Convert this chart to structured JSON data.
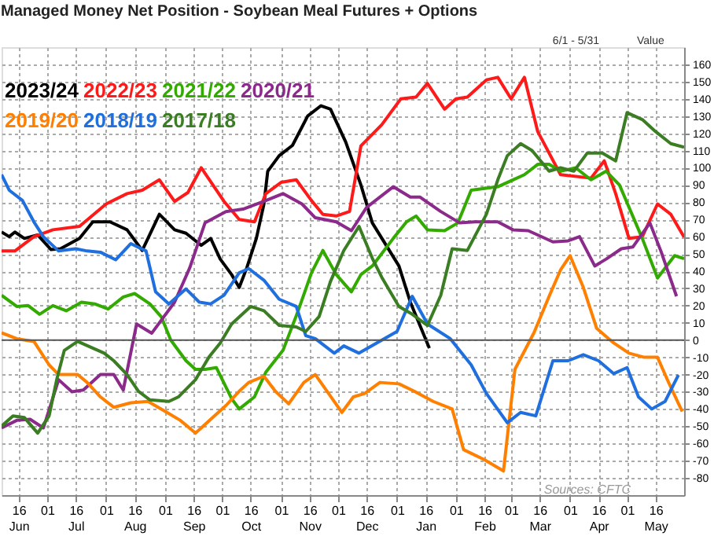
{
  "chart_data": {
    "type": "line",
    "title": "Managed Money Net Position - Soybean Meal Futures + Options",
    "ylabel": "Value",
    "annotations": [
      "6/1 - 5/31",
      "Sources: CFTC"
    ],
    "xlim": [
      "2023-06-07",
      "2024-05-31"
    ],
    "xticks": [
      {
        "value": "2023-06-16",
        "label": "16\nJun"
      },
      {
        "value": "2023-07-01",
        "label": "01"
      },
      {
        "value": "2023-07-16",
        "label": "16\nJul"
      },
      {
        "value": "2023-08-01",
        "label": "01"
      },
      {
        "value": "2023-08-16",
        "label": "16\nAug"
      },
      {
        "value": "2023-09-01",
        "label": "01"
      },
      {
        "value": "2023-09-16",
        "label": "16\nSep"
      },
      {
        "value": "2023-10-01",
        "label": "01"
      },
      {
        "value": "2023-10-16",
        "label": "16\nOct"
      },
      {
        "value": "2023-11-01",
        "label": "01"
      },
      {
        "value": "2023-11-16",
        "label": "16\nNov"
      },
      {
        "value": "2023-12-01",
        "label": "01"
      },
      {
        "value": "2023-12-16",
        "label": "16\nDec"
      },
      {
        "value": "2024-01-01",
        "label": "01"
      },
      {
        "value": "2024-01-16",
        "label": "16\nJan"
      },
      {
        "value": "2024-02-01",
        "label": "01"
      },
      {
        "value": "2024-02-16",
        "label": "16\nFeb"
      },
      {
        "value": "2024-03-01",
        "label": "01"
      },
      {
        "value": "2024-03-16",
        "label": "16\nMar"
      },
      {
        "value": "2024-04-01",
        "label": "01"
      },
      {
        "value": "2024-04-16",
        "label": "16\nApr"
      },
      {
        "value": "2024-05-01",
        "label": "01"
      },
      {
        "value": "2024-05-16",
        "label": "16\nMay"
      }
    ],
    "ylim": [
      -90,
      170
    ],
    "yticks": [
      -80,
      -70,
      -60,
      -50,
      -40,
      -30,
      -20,
      -10,
      0,
      10,
      20,
      30,
      40,
      50,
      60,
      70,
      80,
      90,
      100,
      110,
      120,
      130,
      140,
      150,
      160
    ],
    "grid": true,
    "legend": "top left",
    "line_style": "solid",
    "marker": "none",
    "ref_lines": [
      {
        "axis": "y",
        "value": 0,
        "color": "#555555"
      }
    ],
    "series": [
      {
        "name": "2023/24",
        "color": "#000000",
        "x": [
          "2023-06-07",
          "2023-06-11",
          "2023-06-14",
          "2023-06-19",
          "2023-06-26",
          "2023-07-03",
          "2023-07-08",
          "2023-07-18",
          "2023-07-25",
          "2023-08-03",
          "2023-08-12",
          "2023-08-20",
          "2023-08-29",
          "2023-09-06",
          "2023-09-12",
          "2023-09-20",
          "2023-09-25",
          "2023-09-30",
          "2023-10-06",
          "2023-10-10",
          "2023-10-14",
          "2023-10-19",
          "2023-10-23",
          "2023-10-25",
          "2023-10-31",
          "2023-11-07",
          "2023-11-15",
          "2023-11-22",
          "2023-11-27",
          "2023-12-05",
          "2023-12-13",
          "2023-12-19",
          "2024-01-02",
          "2024-01-08",
          "2024-01-18"
        ],
        "values": [
          62.7,
          60,
          62.7,
          59,
          61,
          52.5,
          53,
          59,
          68.6,
          68.6,
          64,
          52,
          73,
          64,
          62,
          55,
          59,
          47,
          38,
          30.5,
          42,
          59,
          79,
          98,
          107,
          113,
          130,
          136,
          134,
          115,
          90,
          68,
          43,
          22,
          -4.7
        ]
      },
      {
        "name": "2022/23",
        "color": "#ff1a1a",
        "x": [
          "2023-06-07",
          "2023-06-14",
          "2023-06-24",
          "2023-07-04",
          "2023-07-18",
          "2023-08-01",
          "2023-08-12",
          "2023-08-20",
          "2023-08-29",
          "2023-09-06",
          "2023-09-13",
          "2023-09-20",
          "2023-10-02",
          "2023-10-10",
          "2023-10-18",
          "2023-10-24",
          "2023-11-01",
          "2023-11-09",
          "2023-11-17",
          "2023-11-23",
          "2023-11-30",
          "2023-12-07",
          "2023-12-13",
          "2023-12-24",
          "2024-01-03",
          "2024-01-11",
          "2024-01-17",
          "2024-01-26",
          "2024-02-01",
          "2024-02-07",
          "2024-02-17",
          "2024-02-23",
          "2024-03-01",
          "2024-03-08",
          "2024-03-15",
          "2024-03-27",
          "2024-04-12",
          "2024-04-19",
          "2024-04-25",
          "2024-05-02",
          "2024-05-09",
          "2024-05-17",
          "2024-05-24",
          "2024-05-31"
        ],
        "values": [
          51.7,
          51.7,
          60,
          64,
          66,
          79,
          85,
          87,
          93,
          80.5,
          85.6,
          100,
          80.5,
          70,
          68.6,
          85,
          91.5,
          93,
          81,
          73,
          72,
          74.6,
          112.7,
          125,
          140,
          141,
          149,
          134,
          140,
          141,
          151,
          152.5,
          140,
          152.5,
          121,
          96,
          94,
          104,
          85,
          59,
          60,
          79,
          73,
          59.7
        ]
      },
      {
        "name": "2021/22",
        "color": "#33aa00",
        "x": [
          "2023-06-07",
          "2023-06-15",
          "2023-06-21",
          "2023-06-27",
          "2023-07-04",
          "2023-07-11",
          "2023-07-19",
          "2023-07-26",
          "2023-08-02",
          "2023-08-10",
          "2023-08-16",
          "2023-08-24",
          "2023-08-30",
          "2023-09-04",
          "2023-09-12",
          "2023-09-17",
          "2023-09-22",
          "2023-09-28",
          "2023-10-06",
          "2023-10-10",
          "2023-10-18",
          "2023-10-24",
          "2023-11-02",
          "2023-11-10",
          "2023-11-17",
          "2023-11-23",
          "2023-11-30",
          "2023-12-08",
          "2023-12-13",
          "2023-12-19",
          "2023-12-30",
          "2024-01-06",
          "2024-01-11",
          "2024-01-17",
          "2024-01-26",
          "2024-02-02",
          "2024-02-09",
          "2024-02-23",
          "2024-03-02",
          "2024-03-08",
          "2024-03-15",
          "2024-03-21",
          "2024-03-27",
          "2024-04-04",
          "2024-04-12",
          "2024-04-20",
          "2024-04-27",
          "2024-05-09",
          "2024-05-17",
          "2024-05-26",
          "2024-05-31"
        ],
        "values": [
          26,
          19.5,
          20,
          15,
          20,
          17,
          22,
          21,
          18,
          25,
          27,
          21,
          13.5,
          0,
          -12,
          -17,
          -17,
          -16,
          -34,
          -40,
          -33,
          -18.6,
          -6,
          17,
          39,
          52,
          38,
          28,
          38,
          43,
          59,
          68.6,
          72,
          64,
          63.5,
          68,
          87,
          89,
          93,
          96,
          102,
          102,
          98,
          100,
          93,
          98,
          90,
          59,
          36,
          49,
          47.3
        ]
      },
      {
        "name": "2020/21",
        "color": "#8b2a8b",
        "x": [
          "2023-06-07",
          "2023-06-15",
          "2023-06-22",
          "2023-06-29",
          "2023-07-07",
          "2023-07-14",
          "2023-07-20",
          "2023-07-29",
          "2023-08-05",
          "2023-08-10",
          "2023-08-17",
          "2023-08-25",
          "2023-09-06",
          "2023-09-14",
          "2023-09-22",
          "2023-10-03",
          "2023-10-12",
          "2023-10-23",
          "2023-11-02",
          "2023-11-12",
          "2023-11-19",
          "2023-11-30",
          "2023-12-08",
          "2023-12-16",
          "2023-12-30",
          "2024-01-08",
          "2024-01-13",
          "2024-01-24",
          "2024-02-03",
          "2024-02-11",
          "2024-02-23",
          "2024-03-02",
          "2024-03-10",
          "2024-03-23",
          "2024-03-31",
          "2024-04-06",
          "2024-04-14",
          "2024-04-20",
          "2024-04-28",
          "2024-05-04",
          "2024-05-13",
          "2024-05-19",
          "2024-05-27"
        ],
        "values": [
          -51,
          -46.6,
          -46,
          -51,
          -23,
          -30,
          -29,
          -20,
          -20,
          -29,
          9.3,
          4,
          22,
          42,
          68,
          74.6,
          76,
          80.5,
          85,
          79,
          71,
          68.6,
          63.5,
          77,
          89,
          83,
          83,
          74.6,
          68,
          68.6,
          68.6,
          64,
          63.5,
          57,
          57.6,
          60,
          43,
          47,
          53,
          54,
          68,
          51,
          25.4
        ]
      },
      {
        "name": "2019/20",
        "color": "#ff8000",
        "x": [
          "2023-06-07",
          "2023-06-15",
          "2023-06-24",
          "2023-07-02",
          "2023-07-07",
          "2023-07-17",
          "2023-07-22",
          "2023-07-29",
          "2023-08-05",
          "2023-08-14",
          "2023-08-23",
          "2023-09-02",
          "2023-09-09",
          "2023-09-17",
          "2023-09-25",
          "2023-10-03",
          "2023-10-10",
          "2023-10-15",
          "2023-10-23",
          "2023-10-29",
          "2023-11-05",
          "2023-11-13",
          "2023-11-19",
          "2023-11-26",
          "2023-12-03",
          "2023-12-09",
          "2023-12-15",
          "2023-12-23",
          "2024-01-02",
          "2024-01-10",
          "2024-01-20",
          "2024-01-30",
          "2024-02-05",
          "2024-02-16",
          "2024-02-26",
          "2024-03-03",
          "2024-03-13",
          "2024-03-21",
          "2024-03-27",
          "2024-04-01",
          "2024-04-08",
          "2024-04-15",
          "2024-04-24",
          "2024-05-02",
          "2024-05-10",
          "2024-05-17",
          "2024-05-23",
          "2024-05-30"
        ],
        "values": [
          4.2,
          0.8,
          -0.8,
          -14.4,
          -20,
          -20,
          -24.6,
          -33,
          -39,
          -36.4,
          -35.6,
          -42,
          -46.6,
          -54,
          -46,
          -38,
          -29.7,
          -24.6,
          -21,
          -29.7,
          -37,
          -24.6,
          -20,
          -31,
          -42,
          -33,
          -31,
          -24.6,
          -25.4,
          -29.7,
          -35.6,
          -40,
          -63.6,
          -69.5,
          -76,
          -17,
          4.2,
          25.4,
          40.7,
          49,
          30.5,
          6.8,
          -1.7,
          -7.6,
          -10,
          -10,
          -25,
          -41.5
        ]
      },
      {
        "name": "2018/19",
        "color": "#1f6fdf",
        "x": [
          "2023-06-07",
          "2023-06-11",
          "2023-06-18",
          "2023-06-24",
          "2023-06-29",
          "2023-07-07",
          "2023-07-16",
          "2023-07-22",
          "2023-07-29",
          "2023-08-06",
          "2023-08-14",
          "2023-08-22",
          "2023-08-27",
          "2023-09-03",
          "2023-09-12",
          "2023-09-19",
          "2023-09-25",
          "2023-10-02",
          "2023-10-10",
          "2023-10-15",
          "2023-10-23",
          "2023-10-31",
          "2023-11-09",
          "2023-11-14",
          "2023-11-19",
          "2023-11-29",
          "2023-12-04",
          "2023-12-12",
          "2023-12-24",
          "2024-01-01",
          "2024-01-09",
          "2024-01-17",
          "2024-01-29",
          "2024-02-09",
          "2024-02-17",
          "2024-02-28",
          "2024-03-06",
          "2024-03-14",
          "2024-03-23",
          "2024-03-31",
          "2024-04-08",
          "2024-04-16",
          "2024-04-24",
          "2024-05-01",
          "2024-05-07",
          "2024-05-14",
          "2024-05-21",
          "2024-05-28"
        ],
        "values": [
          96,
          87,
          81,
          68.6,
          60,
          51.7,
          53,
          51.7,
          51,
          46.6,
          56,
          51.7,
          28,
          21,
          29.7,
          22,
          21,
          26,
          39,
          41.5,
          34.7,
          23.7,
          19.5,
          2.5,
          0.8,
          -7.6,
          -3.4,
          -7.6,
          0,
          5,
          25.4,
          9.3,
          0.8,
          -14.4,
          -31,
          -48,
          -42,
          -44,
          -12,
          -12,
          -8.5,
          -12,
          -19.5,
          -16,
          -33,
          -40,
          -35.6,
          -20.3
        ]
      },
      {
        "name": "2017/18",
        "color": "#3a7d22",
        "x": [
          "2023-06-07",
          "2023-06-13",
          "2023-06-19",
          "2023-06-26",
          "2023-07-02",
          "2023-07-06",
          "2023-07-10",
          "2023-07-17",
          "2023-07-24",
          "2023-07-31",
          "2023-08-05",
          "2023-08-12",
          "2023-08-18",
          "2023-08-24",
          "2023-09-03",
          "2023-09-08",
          "2023-09-17",
          "2023-09-24",
          "2023-09-30",
          "2023-10-06",
          "2023-10-16",
          "2023-10-23",
          "2023-10-31",
          "2023-11-09",
          "2023-11-14",
          "2023-11-21",
          "2023-11-27",
          "2023-12-04",
          "2023-12-12",
          "2023-12-19",
          "2023-12-24",
          "2024-01-02",
          "2024-01-09",
          "2024-01-17",
          "2024-01-24",
          "2024-01-30",
          "2024-02-07",
          "2024-02-17",
          "2024-02-23",
          "2024-02-28",
          "2024-03-06",
          "2024-03-12",
          "2024-03-21",
          "2024-03-27",
          "2024-04-03",
          "2024-04-10",
          "2024-04-18",
          "2024-04-25",
          "2024-05-01",
          "2024-05-09",
          "2024-05-16",
          "2024-05-24",
          "2024-05-31"
        ],
        "values": [
          -50,
          -44,
          -45,
          -54,
          -44,
          -23,
          -6,
          -0.8,
          -4.2,
          -7.6,
          -12,
          -20,
          -29.7,
          -34.7,
          -35.6,
          -33,
          -23,
          -10,
          -1.7,
          9.3,
          19.5,
          17,
          8.5,
          7.6,
          5,
          13.6,
          34,
          52,
          66,
          47.5,
          36.4,
          19.5,
          15,
          8.5,
          26,
          53,
          52,
          73,
          93,
          107,
          114,
          110,
          98,
          100,
          98,
          108.5,
          108.5,
          104,
          132,
          128,
          121,
          114,
          111.9
        ]
      }
    ]
  }
}
